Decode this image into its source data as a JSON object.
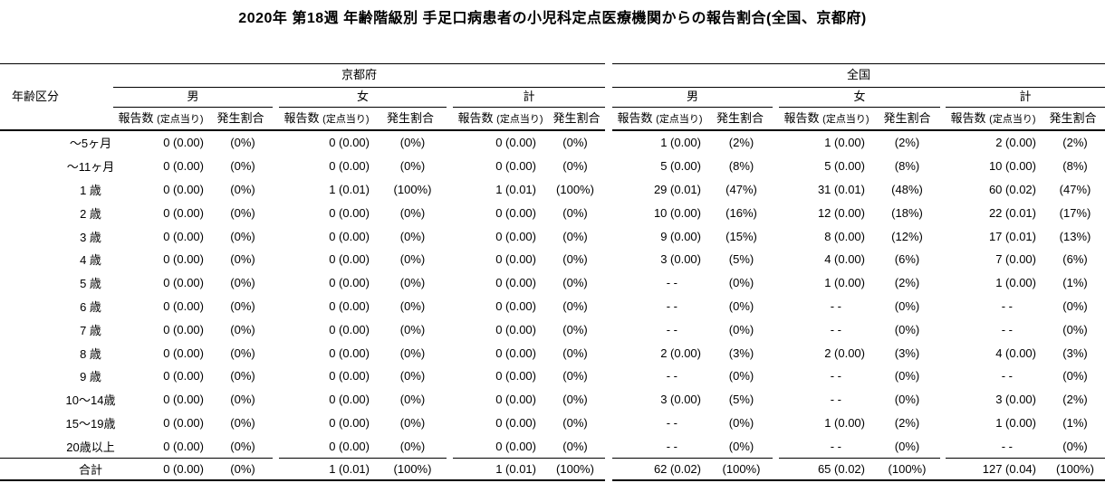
{
  "title": "2020年 第18週 年齢階級別 手足口病患者の小児科定点医療機関からの報告割合(全国、京都府)",
  "table": {
    "age_header": "年齢区分",
    "regions": [
      {
        "label": "京都府"
      },
      {
        "label": "全国"
      }
    ],
    "genders": [
      "男",
      "女",
      "計"
    ],
    "sub_headers": {
      "count": "報告数",
      "count_note": "(定点当り)",
      "rate": "発生割合"
    },
    "rows": [
      {
        "age": "～5ヶ月",
        "cells": [
          "0 (0.00)",
          "(0%)",
          "0 (0.00)",
          "(0%)",
          "0 (0.00)",
          "(0%)",
          "1 (0.00)",
          "(2%)",
          "1 (0.00)",
          "(2%)",
          "2 (0.00)",
          "(2%)"
        ]
      },
      {
        "age": "～11ヶ月",
        "cells": [
          "0 (0.00)",
          "(0%)",
          "0 (0.00)",
          "(0%)",
          "0 (0.00)",
          "(0%)",
          "5 (0.00)",
          "(8%)",
          "5 (0.00)",
          "(8%)",
          "10 (0.00)",
          "(8%)"
        ]
      },
      {
        "age": "1 歳",
        "cells": [
          "0 (0.00)",
          "(0%)",
          "1 (0.01)",
          "(100%)",
          "1 (0.01)",
          "(100%)",
          "29 (0.01)",
          "(47%)",
          "31 (0.01)",
          "(48%)",
          "60 (0.02)",
          "(47%)"
        ]
      },
      {
        "age": "2 歳",
        "cells": [
          "0 (0.00)",
          "(0%)",
          "0 (0.00)",
          "(0%)",
          "0 (0.00)",
          "(0%)",
          "10 (0.00)",
          "(16%)",
          "12 (0.00)",
          "(18%)",
          "22 (0.01)",
          "(17%)"
        ]
      },
      {
        "age": "3 歳",
        "cells": [
          "0 (0.00)",
          "(0%)",
          "0 (0.00)",
          "(0%)",
          "0 (0.00)",
          "(0%)",
          "9 (0.00)",
          "(15%)",
          "8 (0.00)",
          "(12%)",
          "17 (0.01)",
          "(13%)"
        ]
      },
      {
        "age": "4 歳",
        "cells": [
          "0 (0.00)",
          "(0%)",
          "0 (0.00)",
          "(0%)",
          "0 (0.00)",
          "(0%)",
          "3 (0.00)",
          "(5%)",
          "4 (0.00)",
          "(6%)",
          "7 (0.00)",
          "(6%)"
        ]
      },
      {
        "age": "5 歳",
        "cells": [
          "0 (0.00)",
          "(0%)",
          "0 (0.00)",
          "(0%)",
          "0 (0.00)",
          "(0%)",
          "- -",
          "(0%)",
          "1 (0.00)",
          "(2%)",
          "1 (0.00)",
          "(1%)"
        ]
      },
      {
        "age": "6 歳",
        "cells": [
          "0 (0.00)",
          "(0%)",
          "0 (0.00)",
          "(0%)",
          "0 (0.00)",
          "(0%)",
          "- -",
          "(0%)",
          "- -",
          "(0%)",
          "- -",
          "(0%)"
        ]
      },
      {
        "age": "7 歳",
        "cells": [
          "0 (0.00)",
          "(0%)",
          "0 (0.00)",
          "(0%)",
          "0 (0.00)",
          "(0%)",
          "- -",
          "(0%)",
          "- -",
          "(0%)",
          "- -",
          "(0%)"
        ]
      },
      {
        "age": "8 歳",
        "cells": [
          "0 (0.00)",
          "(0%)",
          "0 (0.00)",
          "(0%)",
          "0 (0.00)",
          "(0%)",
          "2 (0.00)",
          "(3%)",
          "2 (0.00)",
          "(3%)",
          "4 (0.00)",
          "(3%)"
        ]
      },
      {
        "age": "9 歳",
        "cells": [
          "0 (0.00)",
          "(0%)",
          "0 (0.00)",
          "(0%)",
          "0 (0.00)",
          "(0%)",
          "- -",
          "(0%)",
          "- -",
          "(0%)",
          "- -",
          "(0%)"
        ]
      },
      {
        "age": "10～14歳",
        "cells": [
          "0 (0.00)",
          "(0%)",
          "0 (0.00)",
          "(0%)",
          "0 (0.00)",
          "(0%)",
          "3 (0.00)",
          "(5%)",
          "- -",
          "(0%)",
          "3 (0.00)",
          "(2%)"
        ]
      },
      {
        "age": "15～19歳",
        "cells": [
          "0 (0.00)",
          "(0%)",
          "0 (0.00)",
          "(0%)",
          "0 (0.00)",
          "(0%)",
          "- -",
          "(0%)",
          "1 (0.00)",
          "(2%)",
          "1 (0.00)",
          "(1%)"
        ]
      },
      {
        "age": "20歳以上",
        "cells": [
          "0 (0.00)",
          "(0%)",
          "0 (0.00)",
          "(0%)",
          "0 (0.00)",
          "(0%)",
          "- -",
          "(0%)",
          "- -",
          "(0%)",
          "- -",
          "(0%)"
        ]
      }
    ],
    "total_row": {
      "age": "合計",
      "cells": [
        "0 (0.00)",
        "(0%)",
        "1 (0.01)",
        "(100%)",
        "1 (0.01)",
        "(100%)",
        "62 (0.02)",
        "(100%)",
        "65 (0.02)",
        "(100%)",
        "127 (0.04)",
        "(100%)"
      ]
    }
  }
}
